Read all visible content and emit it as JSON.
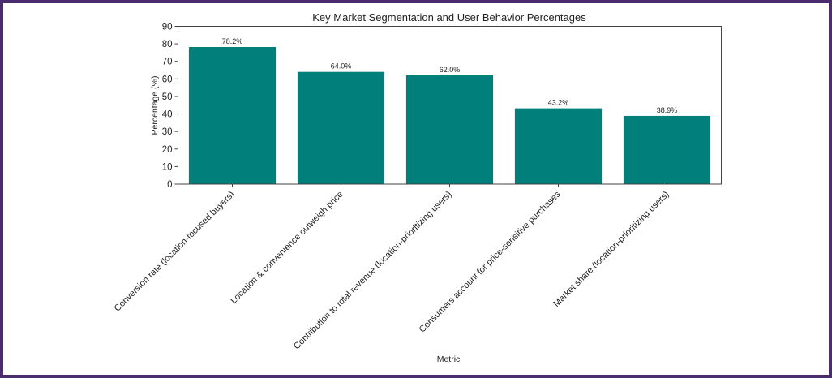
{
  "chart_data": {
    "type": "bar",
    "title": "Key Market Segmentation and User Behavior Percentages",
    "xlabel": "Metric",
    "ylabel": "Percentage (%)",
    "ylim": [
      0,
      90
    ],
    "yticks": [
      0,
      10,
      20,
      30,
      40,
      50,
      60,
      70,
      80,
      90
    ],
    "grid": false,
    "legend": null,
    "bar_color": "#007f7b",
    "categories": [
      "Conversion rate (location-focused buyers)",
      "Location & convenience outweigh price",
      "Contribution to total revenue (location-prioritizing users)",
      "Consumers account for price-sensitive purchases",
      "Market share (location-prioritizing users)"
    ],
    "values": [
      78.2,
      64.0,
      62.0,
      43.2,
      38.9
    ],
    "value_labels": [
      "78.2%",
      "64.0%",
      "62.0%",
      "43.2%",
      "38.9%"
    ]
  },
  "colors": {
    "frame_border": "#4b2c6f",
    "bar": "#007f7b",
    "axis": "#333333"
  }
}
